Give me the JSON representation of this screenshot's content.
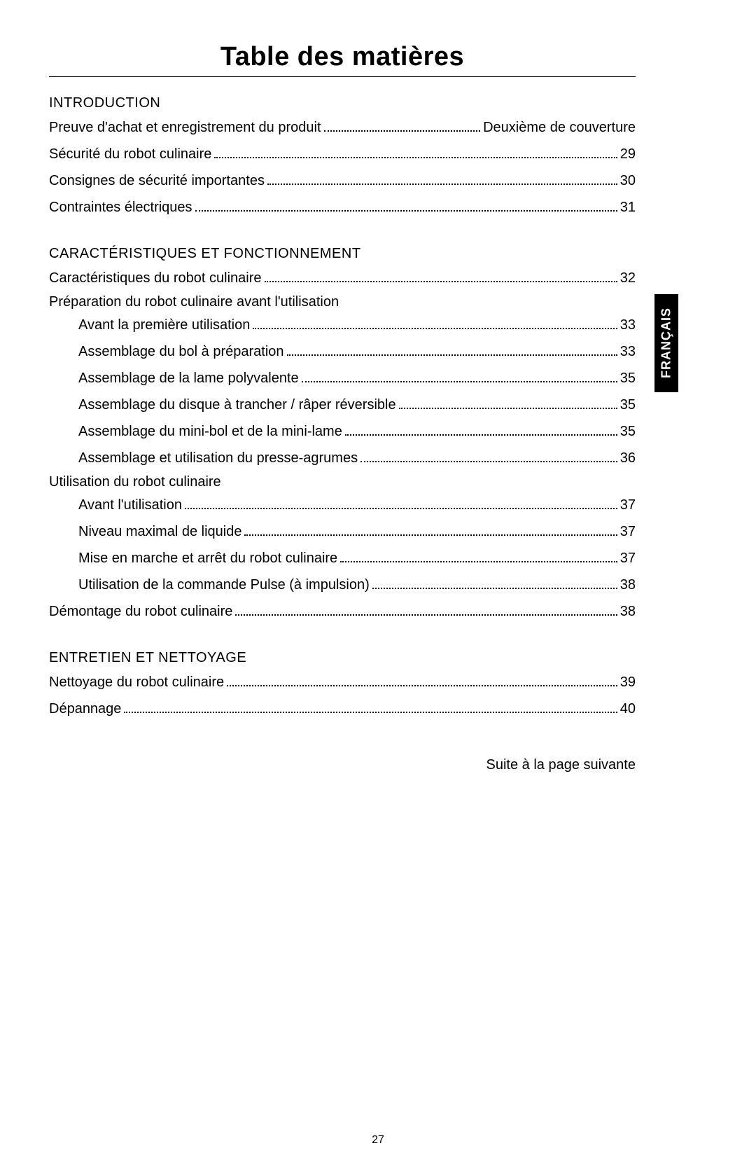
{
  "title": "Table des matières",
  "side_tab": "FRANÇAIS",
  "continued": "Suite à la page suivante",
  "page_number": "27",
  "sections": {
    "s0_heading": "INTRODUCTION",
    "s0_e0_label": "Preuve d'achat et enregistrement du produit",
    "s0_e0_page": "Deuxième de couverture",
    "s0_e1_label": "Sécurité du robot culinaire",
    "s0_e1_page": "29",
    "s0_e2_label": "Consignes de sécurité importantes",
    "s0_e2_page": "30",
    "s0_e3_label": "Contraintes électriques",
    "s0_e3_page": "31",
    "s1_heading": "CARACTÉRISTIQUES ET FONCTIONNEMENT",
    "s1_e0_label": "Caractéristiques du robot culinaire",
    "s1_e0_page": "32",
    "s1_sub0": "Préparation du robot culinaire avant l'utilisation",
    "s1_sub0_e0_label": "Avant la première utilisation",
    "s1_sub0_e0_page": "33",
    "s1_sub0_e1_label": "Assemblage du bol à préparation",
    "s1_sub0_e1_page": "33",
    "s1_sub0_e2_label": "Assemblage de la lame polyvalente",
    "s1_sub0_e2_page": "35",
    "s1_sub0_e3_label": "Assemblage du disque à trancher / râper réversible",
    "s1_sub0_e3_page": "35",
    "s1_sub0_e4_label": "Assemblage du mini-bol et de la mini-lame",
    "s1_sub0_e4_page": "35",
    "s1_sub0_e5_label": "Assemblage et utilisation du presse-agrumes",
    "s1_sub0_e5_page": "36",
    "s1_sub1": "Utilisation du robot culinaire",
    "s1_sub1_e0_label": "Avant l'utilisation",
    "s1_sub1_e0_page": "37",
    "s1_sub1_e1_label": "Niveau maximal de liquide",
    "s1_sub1_e1_page": "37",
    "s1_sub1_e2_label": "Mise en marche et arrêt du robot culinaire",
    "s1_sub1_e2_page": "37",
    "s1_sub1_e3_label": "Utilisation de la commande Pulse (à impulsion)",
    "s1_sub1_e3_page": "38",
    "s1_e1_label": "Démontage du robot culinaire",
    "s1_e1_page": "38",
    "s2_heading": "ENTRETIEN ET NETTOYAGE",
    "s2_e0_label": "Nettoyage du robot culinaire",
    "s2_e0_page": "39",
    "s2_e1_label": "Dépannage",
    "s2_e1_page": "40"
  }
}
